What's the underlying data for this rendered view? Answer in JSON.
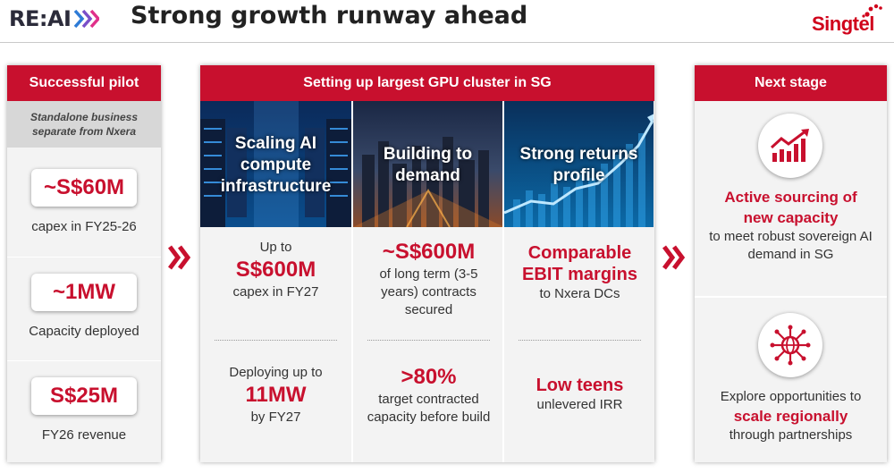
{
  "header": {
    "logo_text": "RE:AI",
    "title": "Strong growth runway ahead",
    "brand": "Singtel"
  },
  "left": {
    "heading": "Successful pilot",
    "subheading": "Standalone business separate from Nxera",
    "items": [
      {
        "value": "~S$60M",
        "caption": "capex in FY25-26"
      },
      {
        "value": "~1MW",
        "caption": "Capacity deployed"
      },
      {
        "value": "S$25M",
        "caption": "FY26 revenue"
      }
    ]
  },
  "middle": {
    "heading": "Setting up largest GPU cluster in SG",
    "columns": [
      {
        "title": "Scaling AI compute infrastructure",
        "top": {
          "pre": "Up to",
          "value": "S$600M",
          "post": "capex in FY27"
        },
        "bottom": {
          "pre": "Deploying up to",
          "value": "11MW",
          "post": "by FY27"
        }
      },
      {
        "title": "Building to demand",
        "top": {
          "value": "~S$600M",
          "post": "of long term (3-5 years) contracts secured"
        },
        "bottom": {
          "value": ">80%",
          "post": "target contracted capacity before build"
        }
      },
      {
        "title": "Strong returns profile",
        "top": {
          "value": "Comparable EBIT margins",
          "post": "to Nxera DCs"
        },
        "bottom": {
          "value": "Low teens",
          "post": "unlevered IRR"
        }
      }
    ]
  },
  "right": {
    "heading": "Next stage",
    "item1": {
      "icon": "growth-chart-icon",
      "highlight": "Active sourcing of new capacity",
      "text": "to meet robust sovereign AI demand in SG"
    },
    "item2": {
      "icon": "global-network-icon",
      "pre": "Explore opportunities to",
      "highlight": "scale regionally",
      "post": "through partnerships"
    }
  },
  "colors": {
    "accent": "#c8102e",
    "panel_bg": "#f3f3f3",
    "sub_bg": "#d7d7d7"
  }
}
